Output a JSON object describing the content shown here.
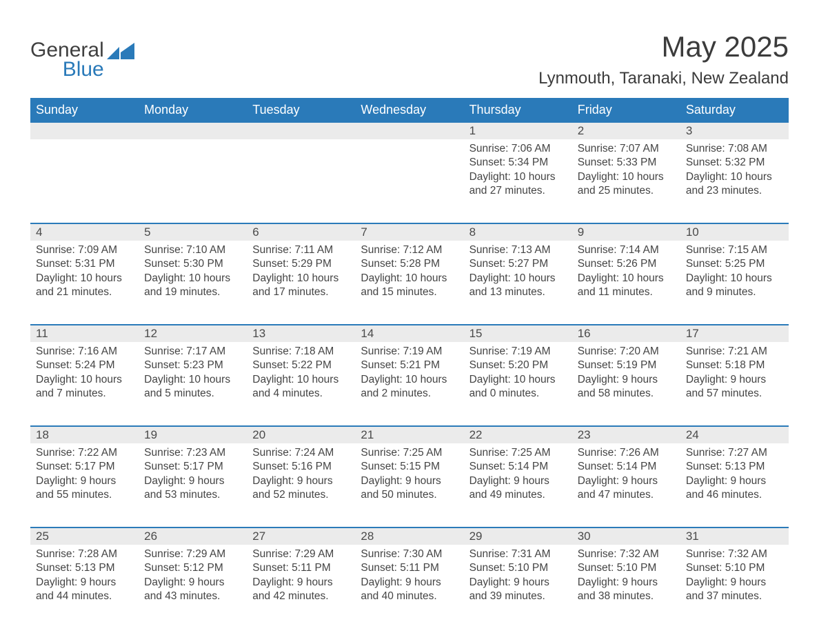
{
  "brand": {
    "word1": "General",
    "word2": "Blue",
    "logo_color": "#2a7ab9"
  },
  "header": {
    "month_title": "May 2025",
    "location": "Lynmouth, Taranaki, New Zealand"
  },
  "colors": {
    "header_bg": "#2a7ab9",
    "header_fg": "#ffffff",
    "daynum_bg": "#ebebeb",
    "row_border": "#2a7ab9",
    "text": "#444444",
    "page_bg": "#ffffff"
  },
  "typography": {
    "month_title_fontsize": 42,
    "location_fontsize": 24,
    "weekday_fontsize": 18,
    "daynum_fontsize": 17,
    "body_fontsize": 15.5,
    "font_family": "Arial"
  },
  "weekdays": [
    "Sunday",
    "Monday",
    "Tuesday",
    "Wednesday",
    "Thursday",
    "Friday",
    "Saturday"
  ],
  "weeks": [
    [
      null,
      null,
      null,
      null,
      {
        "day": "1",
        "sunrise": "Sunrise: 7:06 AM",
        "sunset": "Sunset: 5:34 PM",
        "daylight": "Daylight: 10 hours and 27 minutes."
      },
      {
        "day": "2",
        "sunrise": "Sunrise: 7:07 AM",
        "sunset": "Sunset: 5:33 PM",
        "daylight": "Daylight: 10 hours and 25 minutes."
      },
      {
        "day": "3",
        "sunrise": "Sunrise: 7:08 AM",
        "sunset": "Sunset: 5:32 PM",
        "daylight": "Daylight: 10 hours and 23 minutes."
      }
    ],
    [
      {
        "day": "4",
        "sunrise": "Sunrise: 7:09 AM",
        "sunset": "Sunset: 5:31 PM",
        "daylight": "Daylight: 10 hours and 21 minutes."
      },
      {
        "day": "5",
        "sunrise": "Sunrise: 7:10 AM",
        "sunset": "Sunset: 5:30 PM",
        "daylight": "Daylight: 10 hours and 19 minutes."
      },
      {
        "day": "6",
        "sunrise": "Sunrise: 7:11 AM",
        "sunset": "Sunset: 5:29 PM",
        "daylight": "Daylight: 10 hours and 17 minutes."
      },
      {
        "day": "7",
        "sunrise": "Sunrise: 7:12 AM",
        "sunset": "Sunset: 5:28 PM",
        "daylight": "Daylight: 10 hours and 15 minutes."
      },
      {
        "day": "8",
        "sunrise": "Sunrise: 7:13 AM",
        "sunset": "Sunset: 5:27 PM",
        "daylight": "Daylight: 10 hours and 13 minutes."
      },
      {
        "day": "9",
        "sunrise": "Sunrise: 7:14 AM",
        "sunset": "Sunset: 5:26 PM",
        "daylight": "Daylight: 10 hours and 11 minutes."
      },
      {
        "day": "10",
        "sunrise": "Sunrise: 7:15 AM",
        "sunset": "Sunset: 5:25 PM",
        "daylight": "Daylight: 10 hours and 9 minutes."
      }
    ],
    [
      {
        "day": "11",
        "sunrise": "Sunrise: 7:16 AM",
        "sunset": "Sunset: 5:24 PM",
        "daylight": "Daylight: 10 hours and 7 minutes."
      },
      {
        "day": "12",
        "sunrise": "Sunrise: 7:17 AM",
        "sunset": "Sunset: 5:23 PM",
        "daylight": "Daylight: 10 hours and 5 minutes."
      },
      {
        "day": "13",
        "sunrise": "Sunrise: 7:18 AM",
        "sunset": "Sunset: 5:22 PM",
        "daylight": "Daylight: 10 hours and 4 minutes."
      },
      {
        "day": "14",
        "sunrise": "Sunrise: 7:19 AM",
        "sunset": "Sunset: 5:21 PM",
        "daylight": "Daylight: 10 hours and 2 minutes."
      },
      {
        "day": "15",
        "sunrise": "Sunrise: 7:19 AM",
        "sunset": "Sunset: 5:20 PM",
        "daylight": "Daylight: 10 hours and 0 minutes."
      },
      {
        "day": "16",
        "sunrise": "Sunrise: 7:20 AM",
        "sunset": "Sunset: 5:19 PM",
        "daylight": "Daylight: 9 hours and 58 minutes."
      },
      {
        "day": "17",
        "sunrise": "Sunrise: 7:21 AM",
        "sunset": "Sunset: 5:18 PM",
        "daylight": "Daylight: 9 hours and 57 minutes."
      }
    ],
    [
      {
        "day": "18",
        "sunrise": "Sunrise: 7:22 AM",
        "sunset": "Sunset: 5:17 PM",
        "daylight": "Daylight: 9 hours and 55 minutes."
      },
      {
        "day": "19",
        "sunrise": "Sunrise: 7:23 AM",
        "sunset": "Sunset: 5:17 PM",
        "daylight": "Daylight: 9 hours and 53 minutes."
      },
      {
        "day": "20",
        "sunrise": "Sunrise: 7:24 AM",
        "sunset": "Sunset: 5:16 PM",
        "daylight": "Daylight: 9 hours and 52 minutes."
      },
      {
        "day": "21",
        "sunrise": "Sunrise: 7:25 AM",
        "sunset": "Sunset: 5:15 PM",
        "daylight": "Daylight: 9 hours and 50 minutes."
      },
      {
        "day": "22",
        "sunrise": "Sunrise: 7:25 AM",
        "sunset": "Sunset: 5:14 PM",
        "daylight": "Daylight: 9 hours and 49 minutes."
      },
      {
        "day": "23",
        "sunrise": "Sunrise: 7:26 AM",
        "sunset": "Sunset: 5:14 PM",
        "daylight": "Daylight: 9 hours and 47 minutes."
      },
      {
        "day": "24",
        "sunrise": "Sunrise: 7:27 AM",
        "sunset": "Sunset: 5:13 PM",
        "daylight": "Daylight: 9 hours and 46 minutes."
      }
    ],
    [
      {
        "day": "25",
        "sunrise": "Sunrise: 7:28 AM",
        "sunset": "Sunset: 5:13 PM",
        "daylight": "Daylight: 9 hours and 44 minutes."
      },
      {
        "day": "26",
        "sunrise": "Sunrise: 7:29 AM",
        "sunset": "Sunset: 5:12 PM",
        "daylight": "Daylight: 9 hours and 43 minutes."
      },
      {
        "day": "27",
        "sunrise": "Sunrise: 7:29 AM",
        "sunset": "Sunset: 5:11 PM",
        "daylight": "Daylight: 9 hours and 42 minutes."
      },
      {
        "day": "28",
        "sunrise": "Sunrise: 7:30 AM",
        "sunset": "Sunset: 5:11 PM",
        "daylight": "Daylight: 9 hours and 40 minutes."
      },
      {
        "day": "29",
        "sunrise": "Sunrise: 7:31 AM",
        "sunset": "Sunset: 5:10 PM",
        "daylight": "Daylight: 9 hours and 39 minutes."
      },
      {
        "day": "30",
        "sunrise": "Sunrise: 7:32 AM",
        "sunset": "Sunset: 5:10 PM",
        "daylight": "Daylight: 9 hours and 38 minutes."
      },
      {
        "day": "31",
        "sunrise": "Sunrise: 7:32 AM",
        "sunset": "Sunset: 5:10 PM",
        "daylight": "Daylight: 9 hours and 37 minutes."
      }
    ]
  ]
}
